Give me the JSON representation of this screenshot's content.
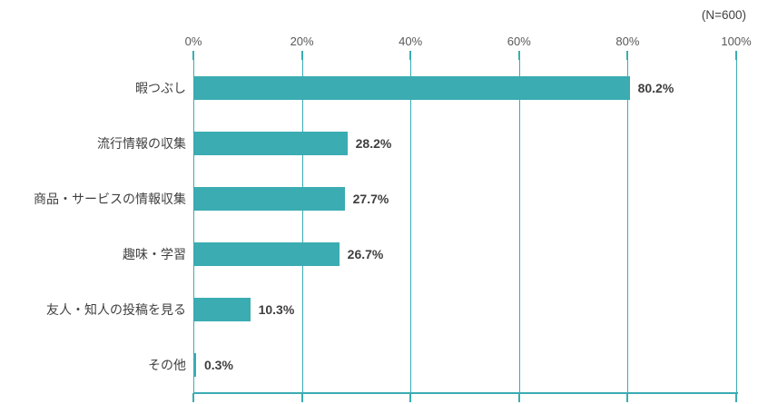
{
  "chart_data": {
    "type": "bar",
    "orientation": "horizontal",
    "title": "",
    "note": "(N=600)",
    "categories": [
      "暇つぶし",
      "流行情報の収集",
      "商品・サービスの情報収集",
      "趣味・学習",
      "友人・知人の投稿を見る",
      "その他"
    ],
    "values": [
      80.2,
      28.2,
      27.7,
      26.7,
      10.3,
      0.3
    ],
    "value_labels": [
      "80.2%",
      "28.2%",
      "27.7%",
      "26.7%",
      "10.3%",
      "0.3%"
    ],
    "x_ticks": [
      "0%",
      "20%",
      "40%",
      "60%",
      "80%",
      "100%"
    ],
    "xlim": [
      0,
      100
    ],
    "grid": true,
    "legend": "none",
    "bar_color": "#3aacb2",
    "axis_color": "#3aacb2",
    "tick_label_color": "#595959",
    "category_label_color": "#404040",
    "value_label_color": "#3f3f3f"
  }
}
